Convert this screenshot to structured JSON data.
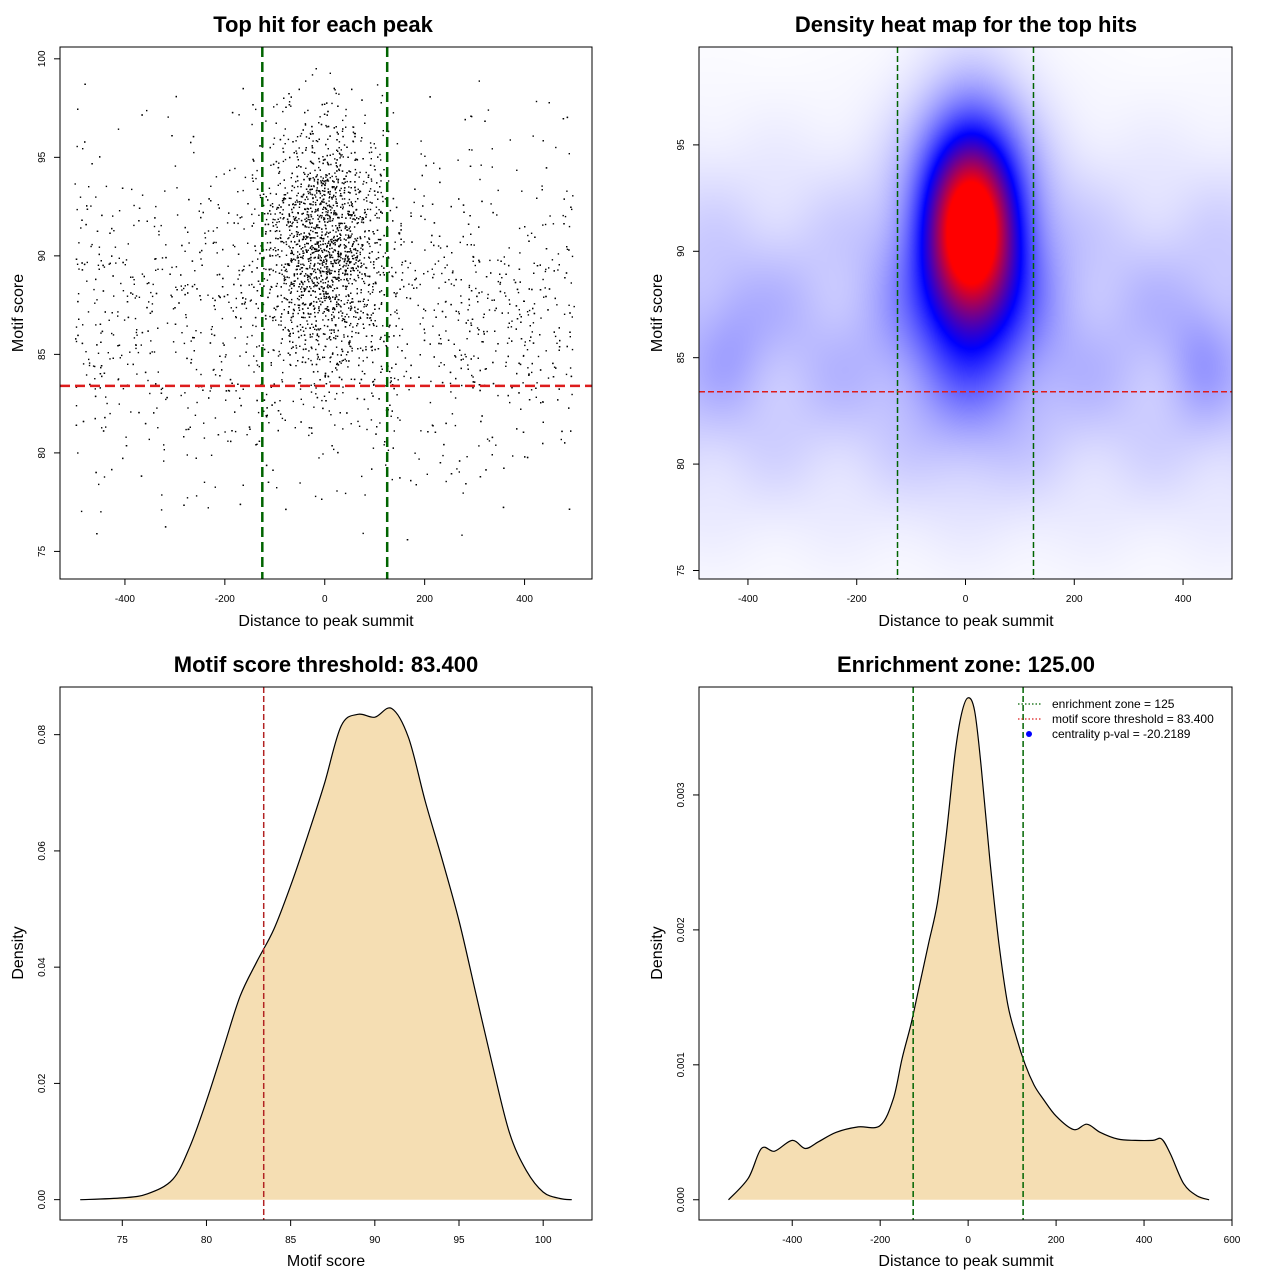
{
  "chart_data": [
    {
      "type": "scatter",
      "title": "Top hit for each peak",
      "xlabel": "Distance to peak summit",
      "ylabel": "Motif score",
      "xlim": [
        -530,
        535
      ],
      "ylim": [
        73.6,
        100.6
      ],
      "xticks": [
        -400,
        -200,
        0,
        200,
        400
      ],
      "yticks": [
        75,
        80,
        85,
        90,
        95,
        100
      ],
      "hlines": [
        {
          "y": 83.4,
          "color": "#dd1c1c"
        }
      ],
      "vlines": [
        {
          "x": -125,
          "color": "#006400"
        },
        {
          "x": 125,
          "color": "#006400"
        }
      ],
      "point_color": "#000000",
      "approx_points": 4300,
      "density_model": {
        "x_range": [
          -500,
          500
        ],
        "y_range": [
          74.5,
          99.5
        ],
        "components": [
          {
            "weight": 0.55,
            "x_mean": 0,
            "x_sd": 60,
            "y_mean": 90.5,
            "y_sd": 3.2
          },
          {
            "weight": 0.45,
            "x_mean": 0,
            "x_sd": 280,
            "y_mean": 87.0,
            "y_sd": 4.3
          }
        ]
      }
    },
    {
      "type": "heatmap",
      "title": "Density heat map for the top hits",
      "xlabel": "Distance to peak summit",
      "ylabel": "Motif score",
      "xlim": [
        -490,
        490
      ],
      "ylim": [
        74.6,
        99.6
      ],
      "xticks": [
        -400,
        -200,
        0,
        200,
        400
      ],
      "yticks": [
        75,
        80,
        85,
        90,
        95
      ],
      "hlines": [
        {
          "y": 83.4,
          "color": "#dd1c1c"
        }
      ],
      "vlines": [
        {
          "x": -125,
          "color": "#006400"
        },
        {
          "x": 125,
          "color": "#006400"
        }
      ],
      "colors": [
        "#ffffff",
        "#0000ff",
        "#ff0000"
      ],
      "peak": {
        "x": 10,
        "y": 91.2
      }
    },
    {
      "type": "area",
      "title": "Motif score threshold: 83.400",
      "xlabel": "Motif score",
      "ylabel": "Density",
      "xlim": [
        71.3,
        102.9
      ],
      "ylim": [
        -0.0035,
        0.0882
      ],
      "xticks": [
        75,
        80,
        85,
        90,
        95,
        100
      ],
      "yticks": [
        0.0,
        0.02,
        0.04,
        0.06,
        0.08
      ],
      "ytick_labels": [
        "0.00",
        "0.02",
        "0.04",
        "0.06",
        "0.08"
      ],
      "vlines": [
        {
          "x": 83.4,
          "color": "#b22222"
        }
      ],
      "fill": "#f5deb3",
      "x": [
        72.5,
        75,
        76.5,
        78,
        79,
        80,
        81,
        82,
        83,
        84,
        85,
        86,
        87,
        88,
        89,
        90,
        91,
        92,
        93,
        94,
        95,
        96,
        97,
        98,
        99,
        100,
        101,
        101.7
      ],
      "y": [
        0.0,
        0.0003,
        0.001,
        0.0035,
        0.009,
        0.017,
        0.026,
        0.035,
        0.041,
        0.0465,
        0.054,
        0.0625,
        0.0715,
        0.0815,
        0.0835,
        0.083,
        0.0845,
        0.0795,
        0.0685,
        0.0585,
        0.048,
        0.0355,
        0.023,
        0.0115,
        0.005,
        0.0013,
        0.0002,
        0.0
      ]
    },
    {
      "type": "area",
      "title": "Enrichment zone: 125.00",
      "xlabel": "Distance to peak summit",
      "ylabel": "Density",
      "xlim": [
        -612,
        600
      ],
      "ylim": [
        -0.00015,
        0.0038
      ],
      "xticks": [
        -400,
        -200,
        0,
        200,
        400,
        600
      ],
      "yticks": [
        0.0,
        0.001,
        0.002,
        0.003
      ],
      "ytick_labels": [
        "0.000",
        "0.001",
        "0.002",
        "0.003"
      ],
      "vlines": [
        {
          "x": -125,
          "color": "#006400"
        },
        {
          "x": 125,
          "color": "#006400"
        }
      ],
      "fill": "#f5deb3",
      "x": [
        -545,
        -500,
        -470,
        -440,
        -400,
        -370,
        -340,
        -300,
        -250,
        -200,
        -170,
        -150,
        -130,
        -110,
        -90,
        -70,
        -50,
        -30,
        -15,
        0,
        15,
        30,
        50,
        70,
        90,
        110,
        130,
        150,
        170,
        200,
        240,
        270,
        300,
        340,
        380,
        420,
        440,
        460,
        490,
        520,
        548
      ],
      "y": [
        0.0,
        0.00016,
        0.00038,
        0.00036,
        0.00044,
        0.00038,
        0.00043,
        0.0005,
        0.00054,
        0.00055,
        0.00075,
        0.00105,
        0.0013,
        0.0016,
        0.0019,
        0.0022,
        0.0027,
        0.0033,
        0.0036,
        0.00372,
        0.00362,
        0.0032,
        0.0025,
        0.0019,
        0.00145,
        0.0012,
        0.001,
        0.00085,
        0.00075,
        0.00062,
        0.00052,
        0.00056,
        0.0005,
        0.00045,
        0.00044,
        0.00044,
        0.00045,
        0.00034,
        0.00012,
        3e-05,
        0.0
      ],
      "legend": {
        "position": "top-right",
        "entries": [
          {
            "label": "enrichment zone = 125",
            "color": "#006400",
            "style": "dotted-line"
          },
          {
            "label": "motif score threshold = 83.400",
            "color": "#dd1c1c",
            "style": "dotted-line"
          },
          {
            "label": "centrality p-val = -20.2189",
            "color": "#0000ff",
            "style": "point"
          }
        ]
      }
    }
  ]
}
